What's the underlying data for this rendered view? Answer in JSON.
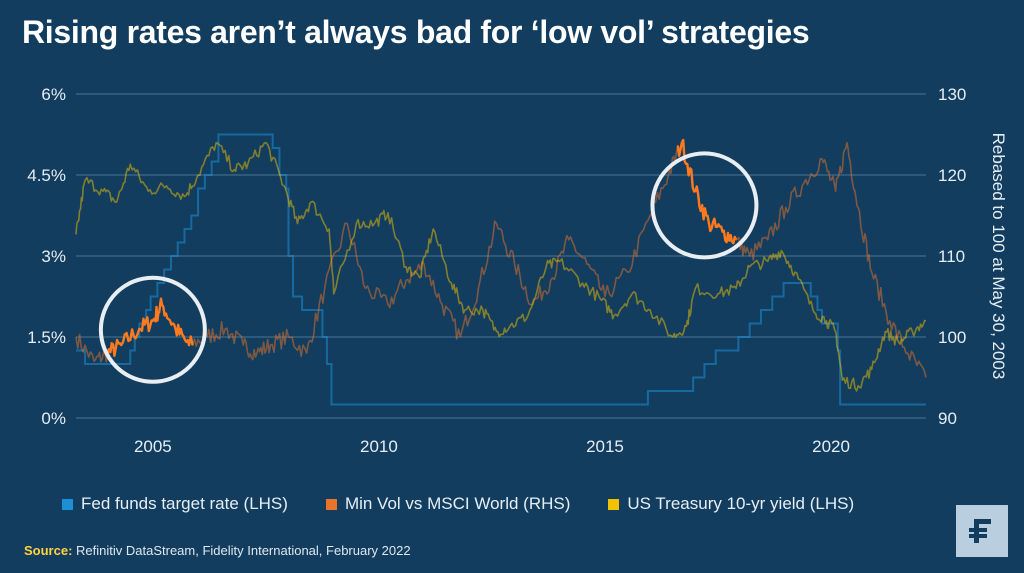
{
  "title": "Rising rates aren’t always bad for ‘low vol’ strategies",
  "legend": [
    {
      "label": "Fed funds target rate (LHS)",
      "color": "#1c8fd6"
    },
    {
      "label": "Min Vol vs MSCI World (RHS)",
      "color": "#e8742a"
    },
    {
      "label": "US Treasury 10-yr yield (LHS)",
      "color": "#f2c200"
    }
  ],
  "source": {
    "label": "Source:",
    "text": "Refinitiv DataStream, Fidelity International, February 2022"
  },
  "logo_icon": "fidelity-f-icon",
  "chart_data": {
    "type": "line",
    "xlim": [
      2003.3,
      2022.1
    ],
    "x_ticks": [
      {
        "value": 2005,
        "label": "2005"
      },
      {
        "value": 2010,
        "label": "2010"
      },
      {
        "value": 2015,
        "label": "2015"
      },
      {
        "value": 2020,
        "label": "2020"
      }
    ],
    "y_left": {
      "lim": [
        0,
        6
      ],
      "ticks": [
        {
          "value": 0,
          "label": "0%"
        },
        {
          "value": 1.5,
          "label": "1.5%"
        },
        {
          "value": 3,
          "label": "3%"
        },
        {
          "value": 4.5,
          "label": "4.5%"
        },
        {
          "value": 6,
          "label": "6%"
        }
      ]
    },
    "y_right": {
      "lim": [
        90,
        130
      ],
      "label": "Rebased to 100 at May 30, 2003",
      "ticks": [
        {
          "value": 90,
          "label": "90"
        },
        {
          "value": 100,
          "label": "100"
        },
        {
          "value": 110,
          "label": "110"
        },
        {
          "value": 120,
          "label": "120"
        },
        {
          "value": 130,
          "label": "130"
        }
      ]
    },
    "grid": true,
    "legend_position": "bottom",
    "series": [
      {
        "name": "Fed funds target rate (LHS)",
        "axis": "left",
        "color": "#1c8fd6",
        "step": true,
        "points": [
          [
            2003.3,
            1.25
          ],
          [
            2003.5,
            1.0
          ],
          [
            2004.5,
            1.25
          ],
          [
            2004.6,
            1.5
          ],
          [
            2004.7,
            1.75
          ],
          [
            2004.85,
            2.0
          ],
          [
            2004.95,
            2.25
          ],
          [
            2005.1,
            2.5
          ],
          [
            2005.25,
            2.75
          ],
          [
            2005.4,
            3.0
          ],
          [
            2005.55,
            3.25
          ],
          [
            2005.7,
            3.5
          ],
          [
            2005.85,
            3.75
          ],
          [
            2006.0,
            4.25
          ],
          [
            2006.15,
            4.5
          ],
          [
            2006.3,
            4.75
          ],
          [
            2006.45,
            5.25
          ],
          [
            2007.65,
            5.0
          ],
          [
            2007.8,
            4.5
          ],
          [
            2007.95,
            4.25
          ],
          [
            2008.0,
            3.0
          ],
          [
            2008.1,
            2.25
          ],
          [
            2008.3,
            2.0
          ],
          [
            2008.75,
            1.5
          ],
          [
            2008.85,
            1.0
          ],
          [
            2008.95,
            0.25
          ],
          [
            2015.95,
            0.5
          ],
          [
            2016.95,
            0.75
          ],
          [
            2017.2,
            1.0
          ],
          [
            2017.45,
            1.25
          ],
          [
            2017.95,
            1.5
          ],
          [
            2018.2,
            1.75
          ],
          [
            2018.45,
            2.0
          ],
          [
            2018.7,
            2.25
          ],
          [
            2018.95,
            2.5
          ],
          [
            2019.55,
            2.25
          ],
          [
            2019.7,
            2.0
          ],
          [
            2019.8,
            1.75
          ],
          [
            2020.15,
            1.25
          ],
          [
            2020.2,
            0.25
          ],
          [
            2022.1,
            0.25
          ]
        ]
      },
      {
        "name": "Min Vol vs MSCI World (RHS)",
        "axis": "right",
        "color": "#e8742a",
        "points": [
          [
            2003.3,
            100
          ],
          [
            2003.7,
            97
          ],
          [
            2004.0,
            98
          ],
          [
            2004.3,
            99
          ],
          [
            2004.7,
            101
          ],
          [
            2005.0,
            102
          ],
          [
            2005.2,
            104
          ],
          [
            2005.5,
            101
          ],
          [
            2005.8,
            99
          ],
          [
            2006.2,
            100
          ],
          [
            2006.6,
            101
          ],
          [
            2007.0,
            99
          ],
          [
            2007.3,
            98
          ],
          [
            2007.6,
            99
          ],
          [
            2008.0,
            100
          ],
          [
            2008.4,
            98
          ],
          [
            2008.8,
            106
          ],
          [
            2009.3,
            114
          ],
          [
            2009.7,
            106
          ],
          [
            2010.2,
            104
          ],
          [
            2010.6,
            107
          ],
          [
            2011.0,
            109
          ],
          [
            2011.4,
            104
          ],
          [
            2011.8,
            100
          ],
          [
            2012.2,
            106
          ],
          [
            2012.6,
            114
          ],
          [
            2013.0,
            109
          ],
          [
            2013.4,
            104
          ],
          [
            2013.8,
            107
          ],
          [
            2014.2,
            112
          ],
          [
            2014.6,
            109
          ],
          [
            2015.0,
            105
          ],
          [
            2015.5,
            108
          ],
          [
            2016.0,
            115
          ],
          [
            2016.4,
            120
          ],
          [
            2016.7,
            124
          ],
          [
            2017.0,
            118
          ],
          [
            2017.3,
            114
          ],
          [
            2017.6,
            113
          ],
          [
            2017.9,
            112
          ],
          [
            2018.2,
            110
          ],
          [
            2018.6,
            112
          ],
          [
            2019.0,
            116
          ],
          [
            2019.4,
            119
          ],
          [
            2019.8,
            122
          ],
          [
            2020.1,
            118
          ],
          [
            2020.35,
            124
          ],
          [
            2020.6,
            116
          ],
          [
            2020.9,
            108
          ],
          [
            2021.3,
            102
          ],
          [
            2021.7,
            98
          ],
          [
            2022.1,
            95
          ]
        ]
      },
      {
        "name": "US Treasury 10-yr yield (LHS)",
        "axis": "left",
        "color": "#f2c200",
        "points": [
          [
            2003.3,
            3.4
          ],
          [
            2003.5,
            4.4
          ],
          [
            2003.9,
            4.2
          ],
          [
            2004.2,
            4.0
          ],
          [
            2004.5,
            4.7
          ],
          [
            2004.9,
            4.2
          ],
          [
            2005.3,
            4.3
          ],
          [
            2005.7,
            4.1
          ],
          [
            2006.0,
            4.5
          ],
          [
            2006.4,
            5.1
          ],
          [
            2006.8,
            4.6
          ],
          [
            2007.1,
            4.7
          ],
          [
            2007.5,
            5.1
          ],
          [
            2007.9,
            4.3
          ],
          [
            2008.2,
            3.6
          ],
          [
            2008.5,
            4.0
          ],
          [
            2008.9,
            3.5
          ],
          [
            2009.0,
            2.3
          ],
          [
            2009.5,
            3.6
          ],
          [
            2009.9,
            3.6
          ],
          [
            2010.2,
            3.8
          ],
          [
            2010.6,
            2.8
          ],
          [
            2010.9,
            2.6
          ],
          [
            2011.2,
            3.5
          ],
          [
            2011.6,
            2.5
          ],
          [
            2011.9,
            2.0
          ],
          [
            2012.3,
            2.0
          ],
          [
            2012.6,
            1.6
          ],
          [
            2012.9,
            1.7
          ],
          [
            2013.3,
            1.9
          ],
          [
            2013.7,
            2.8
          ],
          [
            2014.0,
            2.9
          ],
          [
            2014.5,
            2.5
          ],
          [
            2014.9,
            2.2
          ],
          [
            2015.2,
            1.9
          ],
          [
            2015.6,
            2.3
          ],
          [
            2016.0,
            2.0
          ],
          [
            2016.5,
            1.5
          ],
          [
            2016.8,
            1.7
          ],
          [
            2017.0,
            2.4
          ],
          [
            2017.5,
            2.3
          ],
          [
            2017.9,
            2.4
          ],
          [
            2018.2,
            2.8
          ],
          [
            2018.6,
            2.9
          ],
          [
            2018.9,
            3.1
          ],
          [
            2019.2,
            2.7
          ],
          [
            2019.6,
            2.0
          ],
          [
            2019.9,
            1.8
          ],
          [
            2020.1,
            1.6
          ],
          [
            2020.25,
            0.7
          ],
          [
            2020.6,
            0.6
          ],
          [
            2020.9,
            0.9
          ],
          [
            2021.2,
            1.6
          ],
          [
            2021.5,
            1.4
          ],
          [
            2021.8,
            1.6
          ],
          [
            2022.1,
            1.8
          ]
        ]
      }
    ],
    "annotations": [
      {
        "type": "circle",
        "series": "Min Vol vs MSCI World (RHS)",
        "x_range": [
          2004.0,
          2005.9
        ],
        "center_x": 2005.0
      },
      {
        "type": "circle",
        "series": "Min Vol vs MSCI World (RHS)",
        "x_range": [
          2016.6,
          2017.9
        ],
        "center_x": 2017.2
      }
    ]
  }
}
